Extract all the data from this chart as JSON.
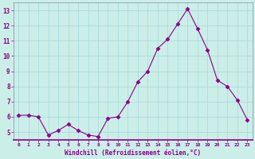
{
  "x": [
    0,
    1,
    2,
    3,
    4,
    5,
    6,
    7,
    8,
    9,
    10,
    11,
    12,
    13,
    14,
    15,
    16,
    17,
    18,
    19,
    20,
    21,
    22,
    23
  ],
  "y": [
    6.1,
    6.1,
    6.0,
    4.8,
    5.1,
    5.5,
    5.1,
    4.8,
    4.7,
    5.9,
    6.0,
    7.0,
    8.3,
    9.0,
    10.5,
    11.1,
    12.1,
    13.1,
    11.8,
    10.4,
    8.4,
    8.0,
    7.1,
    5.8
  ],
  "line_color": "#880088",
  "marker": "D",
  "marker_size": 2.5,
  "bg_color": "#cceee8",
  "grid_color": "#aadddd",
  "xlabel": "Windchill (Refroidissement éolien,°C)",
  "xlabel_color": "#880088",
  "tick_color": "#880088",
  "ylim": [
    4.5,
    13.5
  ],
  "yticks": [
    5,
    6,
    7,
    8,
    9,
    10,
    11,
    12,
    13
  ],
  "xlim": [
    -0.5,
    23.5
  ],
  "spine_color": "#8888aa",
  "axis_bottom_color": "#880088"
}
